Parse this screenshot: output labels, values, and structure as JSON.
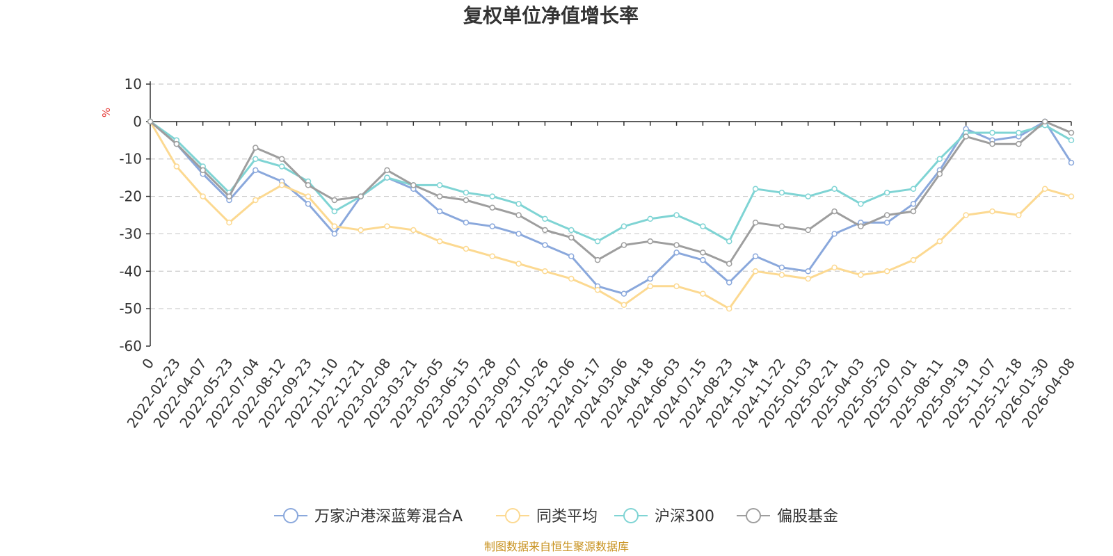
{
  "chart_data": {
    "type": "line",
    "title": "复权单位净值增长率",
    "ylabel": "%",
    "ylim": [
      -60,
      10
    ],
    "yticks": [
      10,
      0,
      -10,
      -20,
      -30,
      -40,
      -50,
      -60
    ],
    "grid": true,
    "legend_position": "bottom",
    "x": [
      "0",
      "2022-02-23",
      "2022-04-07",
      "2022-05-23",
      "2022-07-04",
      "2022-08-12",
      "2022-09-23",
      "2022-11-10",
      "2022-12-21",
      "2023-02-08",
      "2023-03-21",
      "2023-05-05",
      "2023-06-15",
      "2023-07-28",
      "2023-09-07",
      "2023-10-26",
      "2023-12-06",
      "2024-01-17",
      "2024-03-06",
      "2024-04-18",
      "2024-06-03",
      "2024-07-15",
      "2024-08-23",
      "2024-10-14",
      "2024-11-22",
      "2025-01-03",
      "2025-02-21",
      "2025-04-03",
      "2025-05-20",
      "2025-07-01",
      "2025-08-11",
      "2025-09-19",
      "2025-11-07",
      "2025-12-18",
      "2026-01-30",
      "2026-04-08"
    ],
    "series": [
      {
        "name": "万家沪港深蓝筹混合A",
        "color": "#8aa8dc",
        "values": [
          0,
          -6,
          -14,
          -21,
          -13,
          -16,
          -22,
          -30,
          -20,
          -15,
          -18,
          -24,
          -27,
          -28,
          -30,
          -33,
          -36,
          -44,
          -46,
          -42,
          -35,
          -37,
          -43,
          -36,
          -39,
          -40,
          -30,
          -27,
          -27,
          -22,
          -13,
          -2,
          -5,
          -4,
          0,
          -11
        ]
      },
      {
        "name": "同类平均",
        "color": "#fcd991",
        "values": [
          0,
          -12,
          -20,
          -27,
          -21,
          -17,
          -20,
          -28,
          -29,
          -28,
          -29,
          -32,
          -34,
          -36,
          -38,
          -40,
          -42,
          -45,
          -49,
          -44,
          -44,
          -46,
          -50,
          -40,
          -41,
          -42,
          -39,
          -41,
          -40,
          -37,
          -32,
          -25,
          -24,
          -25,
          -18,
          -20
        ]
      },
      {
        "name": "沪深300",
        "color": "#7fd4d4",
        "values": [
          0,
          -5,
          -12,
          -19,
          -10,
          -12,
          -16,
          -24,
          -20,
          -15,
          -17,
          -17,
          -19,
          -20,
          -22,
          -26,
          -29,
          -32,
          -28,
          -26,
          -25,
          -28,
          -32,
          -18,
          -19,
          -20,
          -18,
          -22,
          -19,
          -18,
          -10,
          -3,
          -3,
          -3,
          -1,
          -5
        ]
      },
      {
        "name": "偏股基金",
        "color": "#9e9e9e",
        "values": [
          0,
          -6,
          -13,
          -20,
          -7,
          -10,
          -17,
          -21,
          -20,
          -13,
          -17,
          -20,
          -21,
          -23,
          -25,
          -29,
          -31,
          -37,
          -33,
          -32,
          -33,
          -35,
          -38,
          -27,
          -28,
          -29,
          -24,
          -28,
          -25,
          -24,
          -14,
          -4,
          -6,
          -6,
          0,
          -3
        ]
      }
    ]
  },
  "footer": {
    "source_text": "制图数据来自恒生聚源数据库",
    "source_color": "#c8921f"
  }
}
